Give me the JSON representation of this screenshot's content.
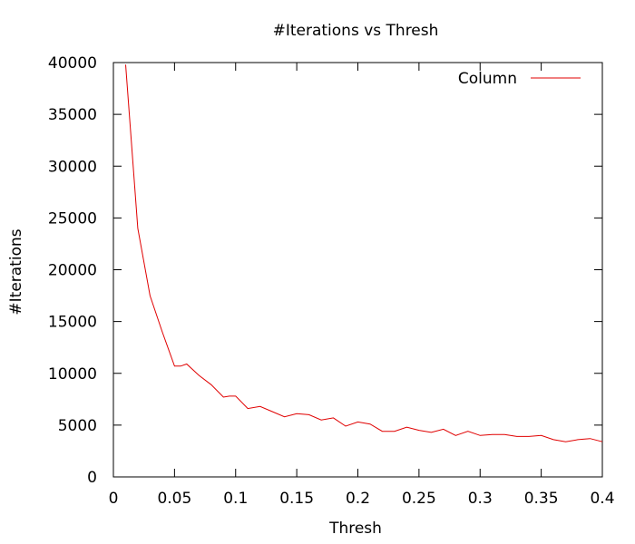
{
  "chart_data": {
    "type": "line",
    "title": "#Iterations vs Thresh",
    "xlabel": "Thresh",
    "ylabel": "#Iterations",
    "xlim": [
      0,
      0.4
    ],
    "ylim": [
      0,
      40000
    ],
    "xticks": [
      0,
      0.05,
      0.1,
      0.15,
      0.2,
      0.25,
      0.3,
      0.35,
      0.4
    ],
    "xtick_labels": [
      "0",
      "0.05",
      "0.1",
      "0.15",
      "0.2",
      "0.25",
      "0.3",
      "0.35",
      "0.4"
    ],
    "yticks": [
      0,
      5000,
      10000,
      15000,
      20000,
      25000,
      30000,
      35000,
      40000
    ],
    "ytick_labels": [
      "0",
      "5000",
      "10000",
      "15000",
      "20000",
      "25000",
      "30000",
      "35000",
      "40000"
    ],
    "grid": false,
    "legend_position": "top-right",
    "series": [
      {
        "name": "Column",
        "color": "#e00000",
        "x": [
          0.01,
          0.02,
          0.03,
          0.04,
          0.05,
          0.055,
          0.06,
          0.07,
          0.08,
          0.09,
          0.095,
          0.1,
          0.11,
          0.12,
          0.13,
          0.14,
          0.15,
          0.16,
          0.17,
          0.18,
          0.19,
          0.2,
          0.21,
          0.22,
          0.23,
          0.24,
          0.25,
          0.26,
          0.27,
          0.28,
          0.29,
          0.3,
          0.31,
          0.32,
          0.33,
          0.34,
          0.35,
          0.36,
          0.37,
          0.38,
          0.39,
          0.4
        ],
        "y": [
          39800,
          24000,
          17500,
          14000,
          10700,
          10700,
          10900,
          9800,
          8900,
          7700,
          7800,
          7800,
          6600,
          6800,
          6300,
          5800,
          6100,
          6000,
          5500,
          5700,
          4900,
          5300,
          5100,
          4400,
          4400,
          4800,
          4500,
          4300,
          4600,
          4000,
          4400,
          4000,
          4100,
          4100,
          3900,
          3900,
          4000,
          3600,
          3400,
          3600,
          3700,
          3400
        ]
      }
    ]
  }
}
